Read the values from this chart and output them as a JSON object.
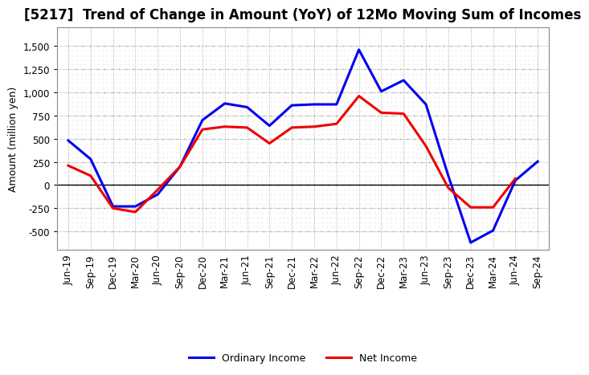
{
  "title": "[5217]  Trend of Change in Amount (YoY) of 12Mo Moving Sum of Incomes",
  "ylabel": "Amount (million yen)",
  "background_color": "#ffffff",
  "plot_bg_color": "#ffffff",
  "grid_color": "#999999",
  "x_labels": [
    "Jun-19",
    "Sep-19",
    "Dec-19",
    "Mar-20",
    "Jun-20",
    "Sep-20",
    "Dec-20",
    "Mar-21",
    "Jun-21",
    "Sep-21",
    "Dec-21",
    "Mar-22",
    "Jun-22",
    "Sep-22",
    "Dec-22",
    "Mar-23",
    "Jun-23",
    "Sep-23",
    "Dec-23",
    "Mar-24",
    "Jun-24",
    "Sep-24"
  ],
  "ordinary_income": [
    480,
    280,
    -230,
    -230,
    -100,
    200,
    700,
    880,
    840,
    640,
    860,
    870,
    870,
    1460,
    1010,
    1130,
    870,
    100,
    -620,
    -490,
    50,
    255
  ],
  "net_income": [
    210,
    100,
    -250,
    -290,
    -50,
    200,
    600,
    630,
    620,
    450,
    620,
    630,
    660,
    960,
    780,
    770,
    420,
    -30,
    -240,
    -240,
    70,
    null
  ],
  "ordinary_color": "#0000ee",
  "net_color": "#ee0000",
  "ylim": [
    -700,
    1700
  ],
  "yticks": [
    -500,
    -250,
    0,
    250,
    500,
    750,
    1000,
    1250,
    1500
  ],
  "line_width": 2.2,
  "title_fontsize": 12,
  "axis_fontsize": 9,
  "tick_fontsize": 8.5,
  "legend_fontsize": 9
}
